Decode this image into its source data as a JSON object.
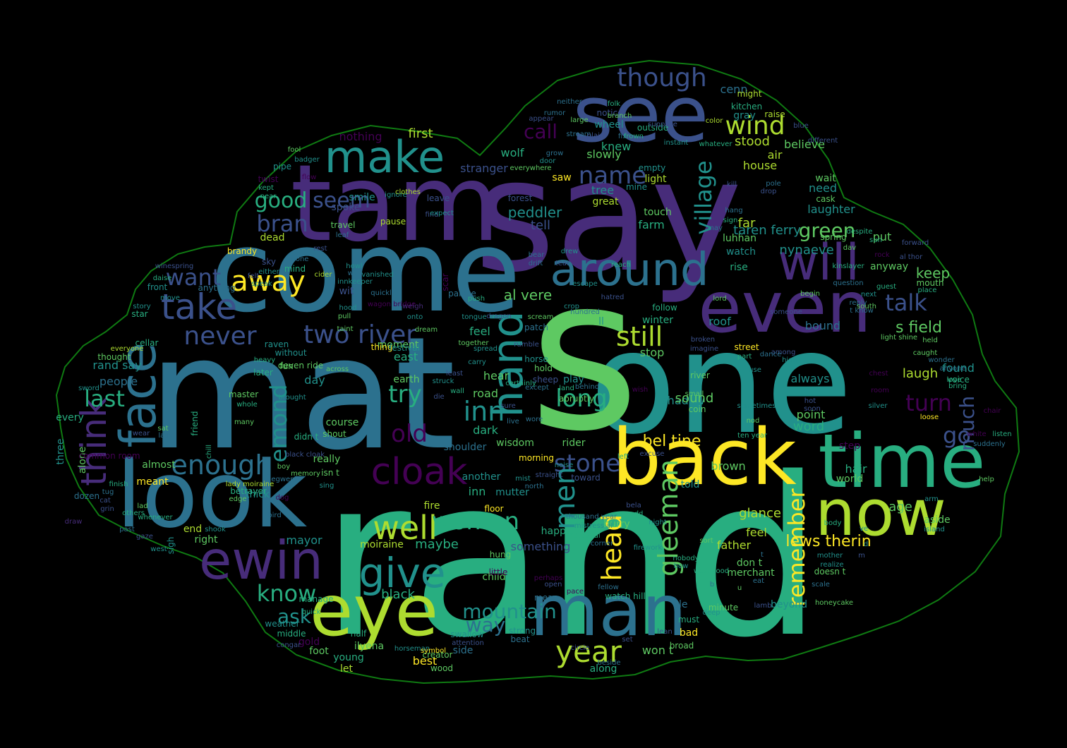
{
  "image": {
    "background": "#000000",
    "outline_color": "#0f7a12",
    "shape": "cloud"
  },
  "palette": {
    "dark_purple": "#440154",
    "purple": "#472c7a",
    "indigo": "#3b518b",
    "blue": "#2c718e",
    "teal": "#21918c",
    "green_teal": "#28ae80",
    "green": "#5ec962",
    "yellow_green": "#addc30",
    "yellow": "#fde725"
  },
  "words": [
    "rand",
    "one",
    "say",
    "mat",
    "s",
    "come",
    "tam",
    "see",
    "look",
    "back",
    "time",
    "now",
    "eye",
    "man",
    "even",
    "will",
    "around",
    "make",
    "face",
    "ewin",
    "hand",
    "cloak",
    "give",
    "well",
    "take",
    "think",
    "away",
    "enough",
    "never",
    "two river",
    "still",
    "though",
    "wind",
    "name",
    "village",
    "bran",
    "good",
    "seem",
    "want",
    "know",
    "stone",
    "woman",
    "long",
    "year",
    "head",
    "gleeman",
    "remember",
    "men",
    "inn",
    "try",
    "old",
    "last",
    "emond",
    "turn",
    "much",
    "go",
    "talk",
    "green",
    "call",
    "bel tine",
    "mountain",
    "way",
    "ask",
    "lews therin",
    "al vere",
    "s field",
    "first",
    "nothing",
    "stood",
    "believe",
    "cenn",
    "kitchen",
    "gray",
    "might",
    "raise",
    "wolf",
    "stranger",
    "peddler",
    "tell",
    "farm",
    "great",
    "tree",
    "knew",
    "slowly",
    "light",
    "mine",
    "empty",
    "touch",
    "saw",
    "wheel",
    "outside",
    "notice",
    "air",
    "house",
    "wait",
    "need",
    "cask",
    "laughter",
    "far",
    "put",
    "spring",
    "taren ferry",
    "nynaeve",
    "luhhan",
    "watch",
    "anyway",
    "keep",
    "mouth",
    "place",
    "rise",
    "bound",
    "roof",
    "shadow",
    "sound",
    "coin",
    "laugh",
    "found",
    "voice",
    "always",
    "point",
    "word",
    "step",
    "hair",
    "world",
    "brown",
    "told",
    "age",
    "moiraine",
    "maybe",
    "mayor",
    "right",
    "father",
    "feel",
    "don t",
    "merchant",
    "glance",
    "hurry",
    "stop",
    "ll",
    "winter",
    "follow",
    "hear",
    "play",
    "day",
    "people",
    "rand say",
    "thought",
    "every",
    "three",
    "alone",
    "almost",
    "meant",
    "end",
    "thick",
    "feel",
    "east",
    "road",
    "dark",
    "shoulder",
    "another",
    "inn",
    "fire",
    "floor",
    "black",
    "moment",
    "thing",
    "festival",
    "earth",
    "raven",
    "without",
    "across",
    "course",
    "shout",
    "really",
    "isn t",
    "wisdom",
    "morning",
    "mutter",
    "sheep",
    "horse",
    "rider",
    "toward",
    "something",
    "happen",
    "cart",
    "child",
    "little",
    "hung",
    "won t",
    "along",
    "side",
    "young",
    "best",
    "let",
    "ilyena",
    "foot",
    "gold",
    "half",
    "bad",
    "broad",
    "must",
    "ale",
    "minute",
    "beyond",
    "dead",
    "brandy",
    "anything",
    "wit",
    "mind",
    "front",
    "star",
    "cellar",
    "story",
    "everyone",
    "sword",
    "master",
    "whole",
    "many",
    "friend",
    "chill",
    "common room",
    "lady moiraine",
    "betrayer",
    "edge",
    "sigh",
    "shook",
    "west",
    "gaze",
    "whenever",
    "manage",
    "quick",
    "weather",
    "middle",
    "congar",
    "horseman",
    "symbol",
    "wood",
    "creator",
    "strong",
    "swallow",
    "attention",
    "circle",
    "beside",
    "set",
    "lean",
    "beat",
    "mean",
    "open",
    "perhaps",
    "pace",
    "fellow",
    "watch hill",
    "deep",
    "lamb",
    "eat",
    "scale",
    "doesn t",
    "realize",
    "mother",
    "body",
    "aside",
    "island",
    "arm",
    "help",
    "listen",
    "suddenly",
    "white",
    "chair",
    "loose",
    "bring",
    "love",
    "anyone",
    "held",
    "wonder",
    "light shine",
    "caught",
    "street",
    "part",
    "use",
    "sometimes",
    "nod",
    "ten year",
    "hot",
    "soon",
    "silver",
    "chest",
    "room",
    "river",
    "small",
    "wish",
    "behind",
    "hold",
    "least",
    "struck",
    "wall",
    "die",
    "fun",
    "deven ride",
    "didn t",
    "black cloak",
    "memory",
    "sing",
    "boy",
    "egwene",
    "dog",
    "bird",
    "lad",
    "others",
    "finish",
    "tug",
    "cat",
    "grin",
    "past",
    "dozen",
    "draw",
    "sat",
    "lady",
    "wear",
    "brought",
    "later",
    "heavy",
    "sky",
    "either",
    "speak",
    "felt",
    "cider",
    "howl",
    "wife",
    "innkeeper",
    "vanished",
    "hood",
    "pull",
    "taint",
    "quickly",
    "wagon bridge",
    "weigh",
    "onto",
    "palace",
    "push",
    "scar",
    "none",
    "rest",
    "pipe",
    "twist",
    "fool",
    "badger",
    "kept",
    "near",
    "flow",
    "winespring",
    "daise",
    "move",
    "smile",
    "spoke",
    "travel",
    "leaf",
    "pause",
    "find",
    "leave",
    "expect",
    "ignore",
    "clothes",
    "forest",
    "everywhere",
    "door",
    "grow",
    "appear",
    "rumor",
    "neither",
    "large",
    "stream",
    "folk",
    "branch",
    "plain",
    "fix",
    "frown",
    "suppose",
    "instant",
    "color",
    "whatever",
    "blue",
    "different",
    "pole",
    "drop",
    "kill",
    "hang",
    "sign",
    "may",
    "despite",
    "sun",
    "dav",
    "rock",
    "forward",
    "al thor",
    "kinslayer",
    "question",
    "next",
    "guest",
    "reply",
    "south",
    "t know",
    "begin",
    "someone",
    "lord",
    "broken",
    "imagine",
    "among",
    "high",
    "dance",
    "drew",
    "tear",
    "bear",
    "drift",
    "reach",
    "escape",
    "hatred",
    "crop",
    "hundred",
    "scream",
    "dragon",
    "tongue",
    "dream",
    "patch",
    "rumble",
    "spread",
    "together",
    "carry",
    "certainly",
    "except",
    "land",
    "abruptly",
    "wore",
    "sure",
    "live",
    "noise",
    "straight",
    "mist",
    "north",
    "left",
    "excuse",
    "bela",
    "add",
    "night",
    "firework",
    "corner",
    "master al",
    "mistress al",
    "thousand year",
    "nobody",
    "bow",
    "sort",
    "westwood",
    "b",
    "u",
    "t",
    "re",
    "ve",
    "d",
    "m",
    "honeycake"
  ]
}
